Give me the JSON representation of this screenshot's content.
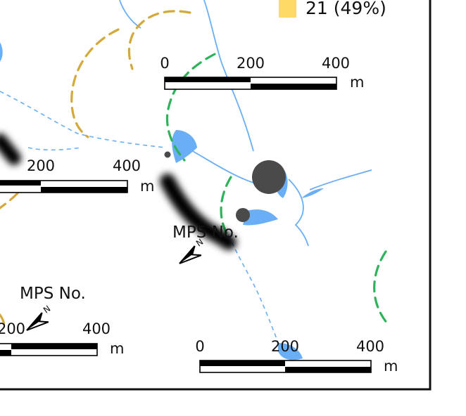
{
  "legend": {
    "entries": [
      {
        "label": "21 (49%)",
        "color": "#ffd966"
      }
    ]
  },
  "scale_bars": [
    {
      "ticks": [
        "0",
        "200",
        "400"
      ],
      "unit": "m"
    },
    {
      "ticks": [
        "200",
        "400"
      ],
      "unit": "m"
    },
    {
      "ticks": [
        "200",
        "400"
      ],
      "unit": "m"
    },
    {
      "ticks": [
        "0",
        "200",
        "400"
      ],
      "unit": "m"
    }
  ],
  "labels": {
    "mps_center": "MPS No.",
    "mps_left": "MPS No."
  },
  "north_arrow": {
    "letter": "N"
  },
  "colors": {
    "water": "#6aaef5",
    "stream": "#6aaef5",
    "route_green": "#2db35a",
    "route_gold": "#d4a93a",
    "site_point": "#4a4a4a",
    "frame": "#111111",
    "shadow_path": "#000000"
  }
}
